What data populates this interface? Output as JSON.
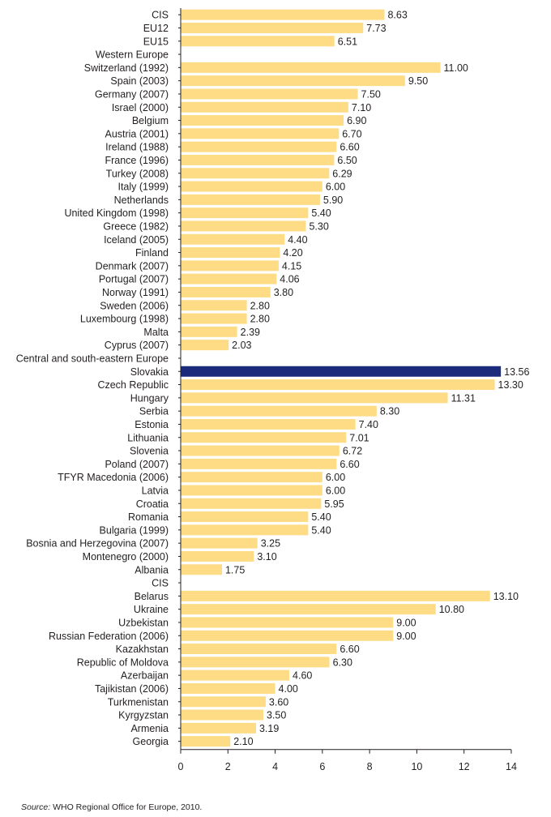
{
  "source": {
    "label": "Source:",
    "text": "WHO Regional Office for Europe, 2010."
  },
  "colors": {
    "bar": "#fddc85",
    "highlight": "#1b2a7a",
    "axis": "#231f20",
    "text": "#231f20"
  },
  "chart_data": {
    "type": "bar",
    "orientation": "horizontal",
    "title": "",
    "xlabel": "",
    "ylabel": "",
    "xlim": [
      0,
      14
    ],
    "xticks": [
      0,
      2,
      4,
      6,
      8,
      10,
      12,
      14
    ],
    "grid": false,
    "legend": "none",
    "highlighted_category": "Slovakia",
    "categories": [
      "CIS",
      "EU12",
      "EU15",
      "Western Europe",
      "Switzerland (1992)",
      "Spain (2003)",
      "Germany (2007)",
      "Israel (2000)",
      "Belgium",
      "Austria (2001)",
      "Ireland (1988)",
      "France (1996)",
      "Turkey (2008)",
      "Italy (1999)",
      "Netherlands",
      "United Kingdom (1998)",
      "Greece (1982)",
      "Iceland (2005)",
      "Finland",
      "Denmark (2007)",
      "Portugal (2007)",
      "Norway (1991)",
      "Sweden (2006)",
      "Luxembourg (1998)",
      "Malta",
      "Cyprus (2007)",
      "Central and south-eastern Europe",
      "Slovakia",
      "Czech Republic",
      "Hungary",
      "Serbia",
      "Estonia",
      "Lithuania",
      "Slovenia",
      "Poland (2007)",
      "TFYR Macedonia (2006)",
      "Latvia",
      "Croatia",
      "Romania",
      "Bulgaria (1999)",
      "Bosnia and Herzegovina (2007)",
      "Montenegro (2000)",
      "Albania",
      "CIS",
      "Belarus",
      "Ukraine",
      "Uzbekistan",
      "Russian Federation (2006)",
      "Kazakhstan",
      "Republic of Moldova",
      "Azerbaijan",
      "Tajikistan (2006)",
      "Turkmenistan",
      "Kyrgyzstan",
      "Armenia",
      "Georgia"
    ],
    "values": [
      8.63,
      7.73,
      6.51,
      null,
      11.0,
      9.5,
      7.5,
      7.1,
      6.9,
      6.7,
      6.6,
      6.5,
      6.29,
      6.0,
      5.9,
      5.4,
      5.3,
      4.4,
      4.2,
      4.15,
      4.06,
      3.8,
      2.8,
      2.8,
      2.39,
      2.03,
      null,
      13.56,
      13.3,
      11.31,
      8.3,
      7.4,
      7.01,
      6.72,
      6.6,
      6.0,
      6.0,
      5.95,
      5.4,
      5.4,
      3.25,
      3.1,
      1.75,
      null,
      13.1,
      10.8,
      9.0,
      9.0,
      6.6,
      6.3,
      4.6,
      4.0,
      3.6,
      3.5,
      3.19,
      2.1
    ],
    "value_labels": [
      "8.63",
      "7.73",
      "6.51",
      "",
      "11.00",
      "9.50",
      "7.50",
      "7.10",
      "6.90",
      "6.70",
      "6.60",
      "6.50",
      "6.29",
      "6.00",
      "5.90",
      "5.40",
      "5.30",
      "4.40",
      "4.20",
      "4.15",
      "4.06",
      "3.80",
      "2.80",
      "2.80",
      "2.39",
      "2.03",
      "",
      "13.56",
      "13.30",
      "11.31",
      "8.30",
      "7.40",
      "7.01",
      "6.72",
      "6.60",
      "6.00",
      "6.00",
      "5.95",
      "5.40",
      "5.40",
      "3.25",
      "3.10",
      "1.75",
      "",
      "13.10",
      "10.80",
      "9.00",
      "9.00",
      "6.60",
      "6.30",
      "4.60",
      "4.00",
      "3.60",
      "3.50",
      "3.19",
      "2.10"
    ]
  }
}
